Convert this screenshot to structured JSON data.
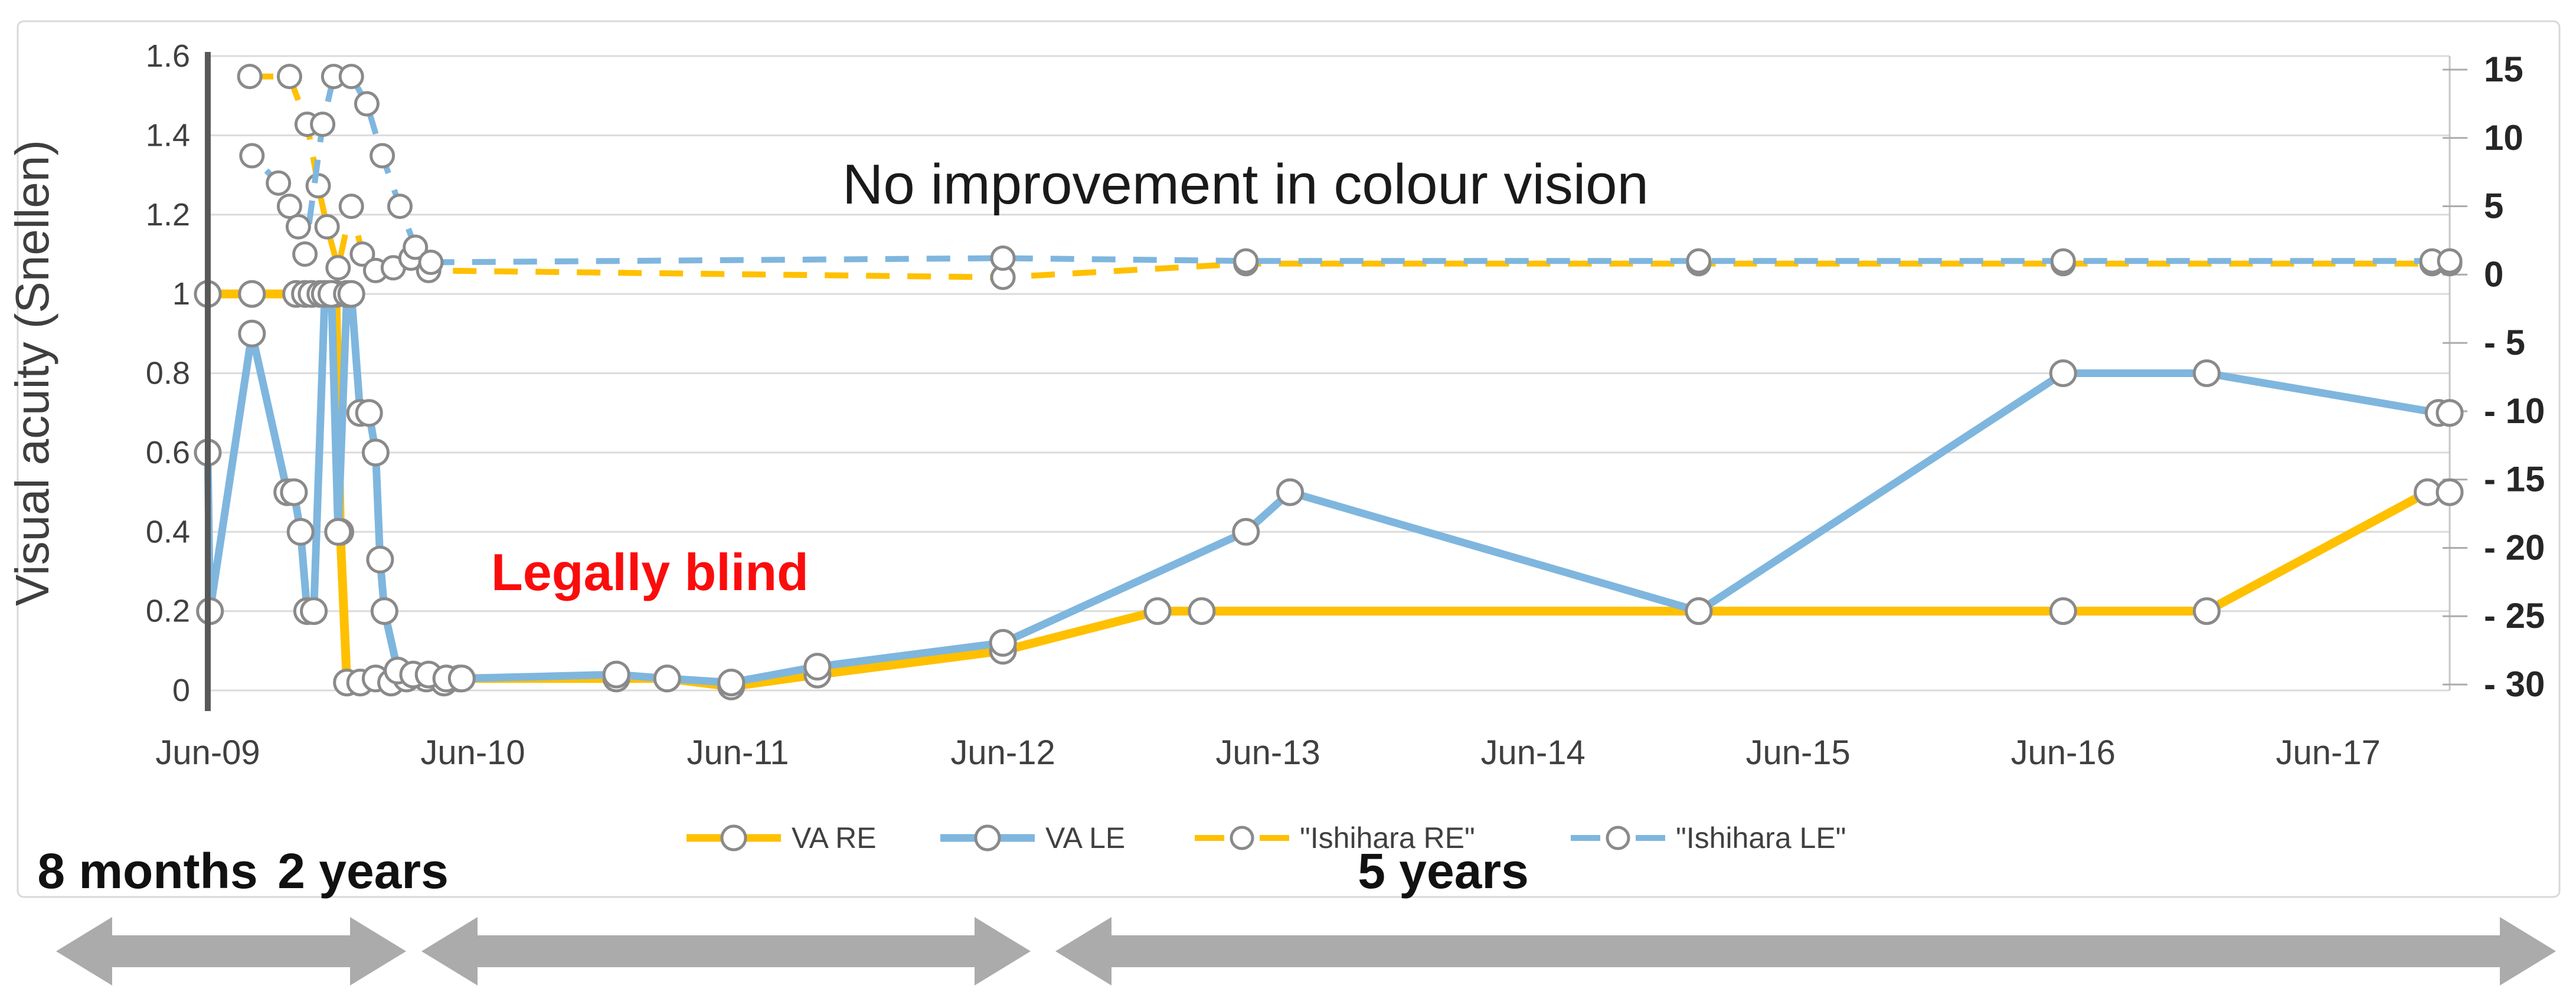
{
  "figure": {
    "background": "#FFFFFF",
    "border_color": "#D9D9D9"
  },
  "chart_data": {
    "type": "line",
    "ylabel": "Visual acuity (Snellen)",
    "x_unit": "months since Jun-2009",
    "x_range": [
      0,
      101.5
    ],
    "x_tick_labels": [
      "Jun-09",
      "Jun-10",
      "Jun-11",
      "Jun-12",
      "Jun-13",
      "Jun-14",
      "Jun-15",
      "Jun-16",
      "Jun-17"
    ],
    "left_axis": {
      "min": 0,
      "max": 1.6,
      "tick_labels": [
        "1.6",
        "1.4",
        "1.2",
        "1",
        "0.8",
        "0.6",
        "0.4",
        "0.2",
        "0"
      ],
      "grid": true
    },
    "right_axis": {
      "min": -30,
      "max": 15,
      "tick_labels": [
        "15",
        "10",
        "5",
        "0",
        "- 5",
        "- 10",
        "- 15",
        "- 20",
        "- 25",
        "- 30"
      ]
    },
    "legend_position": "bottom",
    "series": [
      {
        "name": "VA RE",
        "axis": "left",
        "style": "solid",
        "color": "#FFC000",
        "points": [
          [
            0,
            1
          ],
          [
            2,
            1
          ],
          [
            4,
            1
          ],
          [
            4.4,
            1
          ],
          [
            4.7,
            1
          ],
          [
            5.1,
            1
          ],
          [
            5.5,
            1
          ],
          [
            5.8,
            1
          ],
          [
            6.0,
            0.4
          ],
          [
            6.3,
            0.02
          ],
          [
            6.9,
            0.02
          ],
          [
            7.6,
            0.03
          ],
          [
            8.3,
            0.02
          ],
          [
            9,
            0.03
          ],
          [
            9.9,
            0.03
          ],
          [
            10.7,
            0.02
          ],
          [
            11.4,
            0.03
          ],
          [
            18.5,
            0.03
          ],
          [
            20.8,
            0.03
          ],
          [
            23.7,
            0.01
          ],
          [
            27.6,
            0.04
          ],
          [
            36,
            0.1
          ],
          [
            43,
            0.2
          ],
          [
            45,
            0.2
          ],
          [
            67.5,
            0.2
          ],
          [
            84,
            0.2
          ],
          [
            90.5,
            0.2
          ],
          [
            100.5,
            0.5
          ],
          [
            101.5,
            0.5
          ]
        ]
      },
      {
        "name": "VA LE",
        "axis": "left",
        "style": "solid",
        "color": "#7FB6DE",
        "points": [
          [
            0,
            0.6
          ],
          [
            0.1,
            0.2
          ],
          [
            2,
            0.9
          ],
          [
            3.6,
            0.5
          ],
          [
            3.9,
            0.5
          ],
          [
            4.2,
            0.4
          ],
          [
            4.5,
            0.2
          ],
          [
            4.8,
            0.2
          ],
          [
            5.3,
            1
          ],
          [
            5.6,
            1
          ],
          [
            5.9,
            0.4
          ],
          [
            6.3,
            1
          ],
          [
            6.5,
            1
          ],
          [
            6.9,
            0.7
          ],
          [
            7.3,
            0.7
          ],
          [
            7.6,
            0.6
          ],
          [
            7.8,
            0.33
          ],
          [
            8.0,
            0.2
          ],
          [
            8.6,
            0.05
          ],
          [
            9.3,
            0.04
          ],
          [
            10,
            0.04
          ],
          [
            10.8,
            0.03
          ],
          [
            11.5,
            0.03
          ],
          [
            18.5,
            0.04
          ],
          [
            20.8,
            0.03
          ],
          [
            23.7,
            0.02
          ],
          [
            27.6,
            0.06
          ],
          [
            36,
            0.12
          ],
          [
            47,
            0.4
          ],
          [
            49,
            0.5
          ],
          [
            67.5,
            0.2
          ],
          [
            84,
            0.8
          ],
          [
            90.5,
            0.8
          ],
          [
            101,
            0.7
          ],
          [
            101.5,
            0.7
          ]
        ]
      },
      {
        "name": "\"Ishihara RE\"",
        "axis": "right",
        "style": "dashed",
        "color": "#FFC000",
        "points": [
          [
            1.9,
            14.5
          ],
          [
            3.7,
            14.5
          ],
          [
            4.5,
            11
          ],
          [
            5,
            6.5
          ],
          [
            5.4,
            3.5
          ],
          [
            5.9,
            0.5
          ],
          [
            6.5,
            5
          ],
          [
            7,
            1.5
          ],
          [
            7.6,
            0.3
          ],
          [
            8.4,
            0.5
          ],
          [
            9.2,
            1.2
          ],
          [
            10,
            0.3
          ],
          [
            36,
            -0.2
          ],
          [
            47,
            0.8
          ],
          [
            67.5,
            0.8
          ],
          [
            84,
            0.8
          ],
          [
            100.7,
            0.8
          ],
          [
            101.5,
            0.8
          ]
        ]
      },
      {
        "name": "\"Ishihara LE\"",
        "axis": "right",
        "style": "dashed",
        "color": "#7FB6DE",
        "points": [
          [
            2,
            8.7
          ],
          [
            3.2,
            6.7
          ],
          [
            3.7,
            5
          ],
          [
            4.1,
            3.5
          ],
          [
            4.4,
            1.5
          ],
          [
            5.2,
            11
          ],
          [
            5.7,
            14.5
          ],
          [
            6.5,
            14.5
          ],
          [
            7.2,
            12.5
          ],
          [
            7.9,
            8.7
          ],
          [
            8.7,
            5
          ],
          [
            9.4,
            2
          ],
          [
            10.1,
            0.9
          ],
          [
            36,
            1.2
          ],
          [
            47,
            1
          ],
          [
            67.5,
            1
          ],
          [
            84,
            1
          ],
          [
            100.7,
            1
          ],
          [
            101.5,
            1
          ]
        ]
      }
    ],
    "annotations": [
      {
        "id": "no_improvement",
        "text": "No improvement in colour vision",
        "color": "#1A1A1A"
      },
      {
        "id": "legally_blind",
        "text": "Legally blind",
        "color": "#FB0C0C"
      }
    ]
  },
  "timeline": {
    "labels": [
      "8 months",
      "2 years",
      "5 years"
    ],
    "arrow_color": "#ABABAB"
  }
}
